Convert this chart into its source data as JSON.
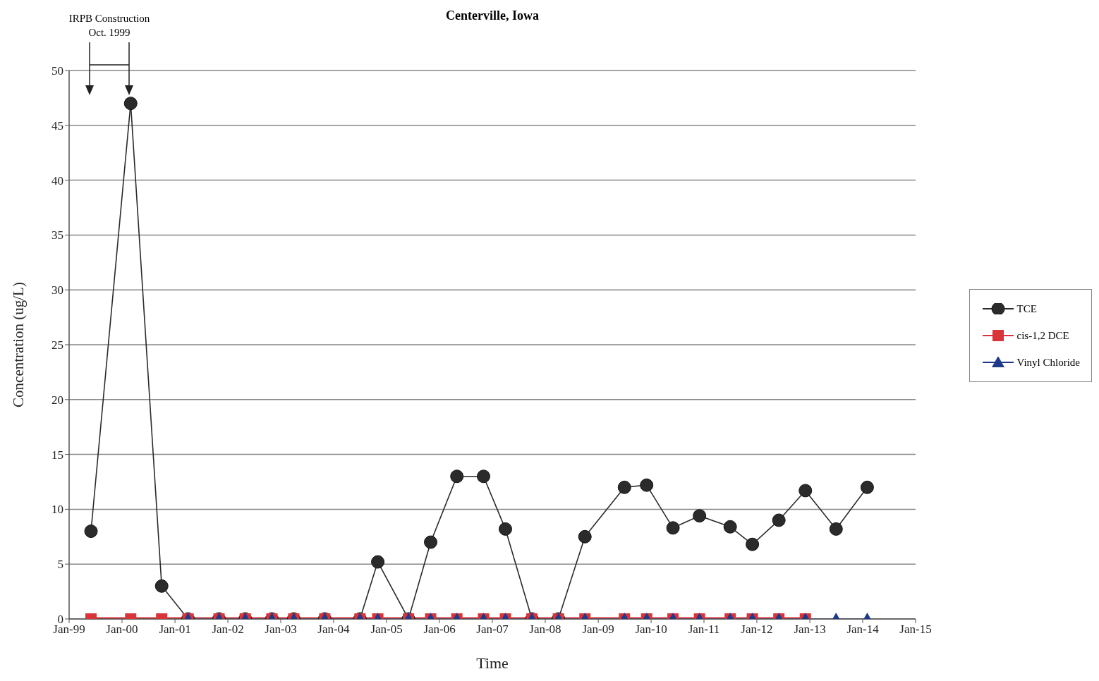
{
  "chart_data": {
    "type": "line",
    "title": "Centerville, Iowa",
    "xlabel": "Time",
    "ylabel": "Concentration (ug/L)",
    "annotations": [
      "IRPB Construction\nOct. 1999"
    ],
    "x": [
      "1999-06",
      "2000-03",
      "2000-10",
      "2001-04",
      "2001-11",
      "2002-05",
      "2002-11",
      "2003-04",
      "2003-11",
      "2004-07",
      "2004-11",
      "2005-06",
      "2005-11",
      "2006-05",
      "2006-11",
      "2007-04",
      "2007-10",
      "2008-04",
      "2008-10",
      "2009-07",
      "2009-12",
      "2010-06",
      "2010-12",
      "2011-07",
      "2011-12",
      "2012-06",
      "2012-12",
      "2013-07",
      "2014-02"
    ],
    "series": [
      {
        "name": "TCE",
        "color": "#2b2b2b",
        "marker": "circle",
        "values": [
          8,
          47,
          3,
          0,
          0,
          0,
          0,
          0,
          0,
          0,
          5.2,
          0,
          7,
          13,
          13,
          8.2,
          0,
          0,
          7.5,
          12,
          12.2,
          8.3,
          9.4,
          8.4,
          6.8,
          9,
          11.7,
          8.2,
          12
        ]
      },
      {
        "name": "cis-1,2 DCE",
        "color": "#d9343a",
        "marker": "square",
        "values": [
          0,
          0,
          0,
          0,
          0,
          0,
          0,
          0,
          0,
          0,
          0,
          0,
          0,
          0,
          0,
          0,
          0,
          0,
          0,
          0,
          0,
          0,
          0,
          0,
          0,
          0,
          0,
          null,
          null
        ]
      },
      {
        "name": "Vinyl Chloride",
        "color": "#1f3a8a",
        "marker": "triangle",
        "values": [
          null,
          null,
          null,
          0,
          0,
          0,
          0,
          0,
          0,
          0,
          0,
          0,
          0,
          0,
          0,
          0,
          0,
          0,
          0,
          0,
          0,
          0,
          0,
          0,
          0,
          0,
          0,
          0,
          0
        ]
      }
    ],
    "xlim": [
      "1999-01",
      "2015-01"
    ],
    "xticks": [
      {
        "value": "1999-01",
        "label": "Jan-99"
      },
      {
        "value": "2000-01",
        "label": "Jan-00"
      },
      {
        "value": "2001-01",
        "label": "Jan-01"
      },
      {
        "value": "2002-01",
        "label": "Jan-02"
      },
      {
        "value": "2003-01",
        "label": "Jan-03"
      },
      {
        "value": "2004-01",
        "label": "Jan-04"
      },
      {
        "value": "2005-01",
        "label": "Jan-05"
      },
      {
        "value": "2006-01",
        "label": "Jan-06"
      },
      {
        "value": "2007-01",
        "label": "Jan-07"
      },
      {
        "value": "2008-01",
        "label": "Jan-08"
      },
      {
        "value": "2009-01",
        "label": "Jan-09"
      },
      {
        "value": "2010-01",
        "label": "Jan-10"
      },
      {
        "value": "2011-01",
        "label": "Jan-11"
      },
      {
        "value": "2012-01",
        "label": "Jan-12"
      },
      {
        "value": "2013-01",
        "label": "Jan-13"
      },
      {
        "value": "2014-01",
        "label": "Jan-14"
      },
      {
        "value": "2015-01",
        "label": "Jan-15"
      }
    ],
    "ylim": [
      0,
      50
    ],
    "yticks": [
      0,
      5,
      10,
      15,
      20,
      25,
      30,
      35,
      40,
      45,
      50
    ],
    "grid": "y",
    "legend": "right"
  }
}
